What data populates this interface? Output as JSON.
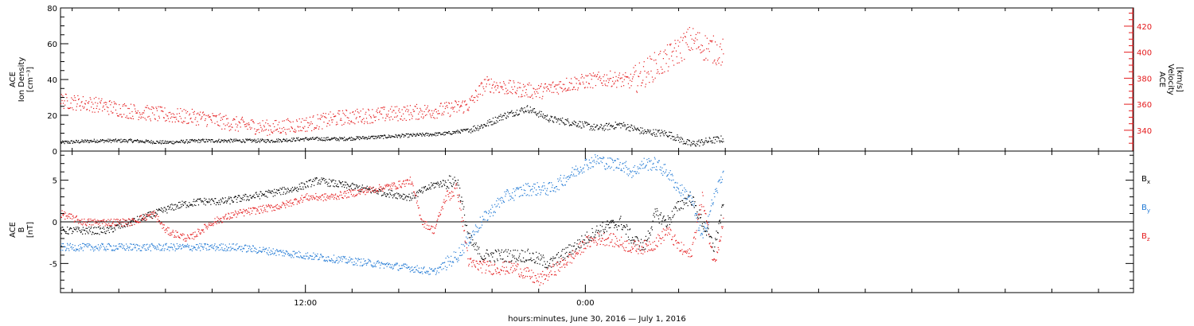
{
  "colors": {
    "black": "#000000",
    "red": "#e41a1c",
    "blue": "#1f78d4"
  },
  "xlabel": "hours:minutes, June 30, 2016 — July  1, 2016",
  "chart_data": [
    {
      "type": "scatter",
      "panel": "top",
      "y_label_left": [
        "ACE",
        "Ion Density",
        "[cm⁻³]"
      ],
      "y_label_right": [
        "ACE",
        "Velocity",
        "[km/s]"
      ],
      "x_unit": "hours since 2016-06-30 00:00",
      "x_range": [
        1.5,
        47.5
      ],
      "x_ticks": [
        {
          "value": 12,
          "label": "12:00"
        },
        {
          "value": 24,
          "label": "0:00"
        }
      ],
      "ylim_left": [
        0,
        80
      ],
      "yticks_left": [
        0,
        20,
        40,
        60,
        80
      ],
      "ylim_right": [
        324,
        434
      ],
      "yticks_right": [
        340,
        360,
        380,
        400,
        420
      ],
      "series": [
        {
          "axis": "left",
          "color": "#000000",
          "x": [
            1.5,
            3,
            4.5,
            6,
            7.5,
            9,
            10.5,
            12,
            13.5,
            15,
            16.5,
            18,
            19,
            19.7,
            20.5,
            21.5,
            22.5,
            23.5,
            24.5,
            25.5,
            26.5,
            27.5,
            28.5,
            29.3,
            29.9
          ],
          "y": [
            5,
            6,
            6,
            5,
            6,
            6,
            6,
            7,
            7,
            8,
            9,
            10,
            12,
            15,
            20,
            24,
            18,
            16,
            13,
            15,
            11,
            10,
            4,
            6,
            7
          ]
        },
        {
          "axis": "right",
          "color": "#e41a1c",
          "x": [
            1.5,
            3,
            4.5,
            6,
            7.5,
            9,
            10.5,
            12,
            13.5,
            15,
            16.5,
            18,
            19,
            19.7,
            21,
            22,
            23,
            24,
            25,
            26,
            26.5,
            27,
            27.5,
            28,
            28.5,
            29,
            29.5,
            29.9
          ],
          "y": [
            363,
            360,
            355,
            352,
            350,
            345,
            342,
            345,
            350,
            352,
            354,
            356,
            360,
            376,
            372,
            370,
            375,
            378,
            380,
            378,
            384,
            390,
            395,
            402,
            410,
            405,
            402,
            400
          ]
        }
      ]
    },
    {
      "type": "scatter",
      "panel": "bottom",
      "y_label_left": [
        "ACE",
        "B",
        "[nT]"
      ],
      "ylim": [
        -8.5,
        8.5
      ],
      "yticks": [
        -5,
        0,
        5
      ],
      "zero_line": true,
      "legend": [
        {
          "label": "B",
          "sub": "x",
          "color": "#000000"
        },
        {
          "label": "B",
          "sub": "y",
          "color": "#1f78d4"
        },
        {
          "label": "B",
          "sub": "z",
          "color": "#e41a1c"
        }
      ],
      "series": [
        {
          "name": "Bx",
          "color": "#000000",
          "x": [
            1.5,
            2.5,
            3.5,
            4.5,
            5.5,
            6.5,
            7.5,
            8.5,
            9.5,
            10.5,
            11.5,
            12.5,
            13.5,
            14.5,
            15.5,
            16.5,
            17.5,
            18.5,
            19,
            19.5,
            20.5,
            21.5,
            22.5,
            23.5,
            24,
            24.5,
            25,
            25.5,
            26,
            26.5,
            27,
            27.5,
            28,
            28.5,
            29,
            29.5,
            29.9
          ],
          "y": [
            -1,
            -1,
            -1,
            0,
            1,
            2,
            2.5,
            2.5,
            3,
            3.5,
            4,
            5,
            4.5,
            4,
            3.5,
            3,
            4.5,
            5,
            -2,
            -4,
            -4,
            -4,
            -5,
            -3,
            -2,
            -1,
            -0.5,
            0,
            -2,
            -3,
            1,
            0,
            2,
            3,
            0,
            -3,
            2
          ]
        },
        {
          "name": "By",
          "color": "#1f78d4",
          "x": [
            1.5,
            3,
            4.5,
            6,
            7.5,
            9,
            10.5,
            12,
            13.5,
            15,
            16.5,
            17.5,
            18,
            18.5,
            19.5,
            20.5,
            21.5,
            22.5,
            23,
            23.5,
            24,
            24.5,
            25,
            25.5,
            26,
            26.5,
            27,
            27.5,
            28,
            28.5,
            29,
            29.5,
            29.9
          ],
          "y": [
            -3,
            -3,
            -3,
            -3,
            -3,
            -3,
            -3.5,
            -4,
            -4.5,
            -5,
            -5.5,
            -6,
            -5,
            -4,
            0,
            3,
            4,
            4,
            5,
            6,
            7,
            7.5,
            7,
            7,
            6,
            7,
            7,
            6,
            4,
            3,
            -2,
            3,
            6
          ]
        },
        {
          "name": "Bz",
          "color": "#e41a1c",
          "x": [
            1.5,
            2.5,
            3.5,
            4.5,
            5.5,
            6,
            7,
            8,
            9,
            10,
            11,
            12,
            13,
            14,
            15,
            16,
            16.5,
            17,
            17.5,
            18,
            18.5,
            19,
            20,
            21,
            22,
            23,
            23.5,
            24,
            24.5,
            25,
            25.5,
            26,
            26.5,
            27,
            27.5,
            28,
            28.5,
            29,
            29.5,
            29.9
          ],
          "y": [
            1,
            0,
            0,
            0,
            1,
            -1,
            -2,
            0,
            1,
            1.5,
            2,
            3,
            3,
            3.5,
            4,
            4.5,
            5,
            0,
            -1,
            3,
            4,
            -5,
            -5.5,
            -5.5,
            -7,
            -5,
            -4,
            -2.5,
            -2,
            -2,
            -2.5,
            -3,
            -3,
            -2.5,
            -1,
            -3,
            -4,
            3,
            -5,
            0
          ]
        }
      ]
    }
  ]
}
